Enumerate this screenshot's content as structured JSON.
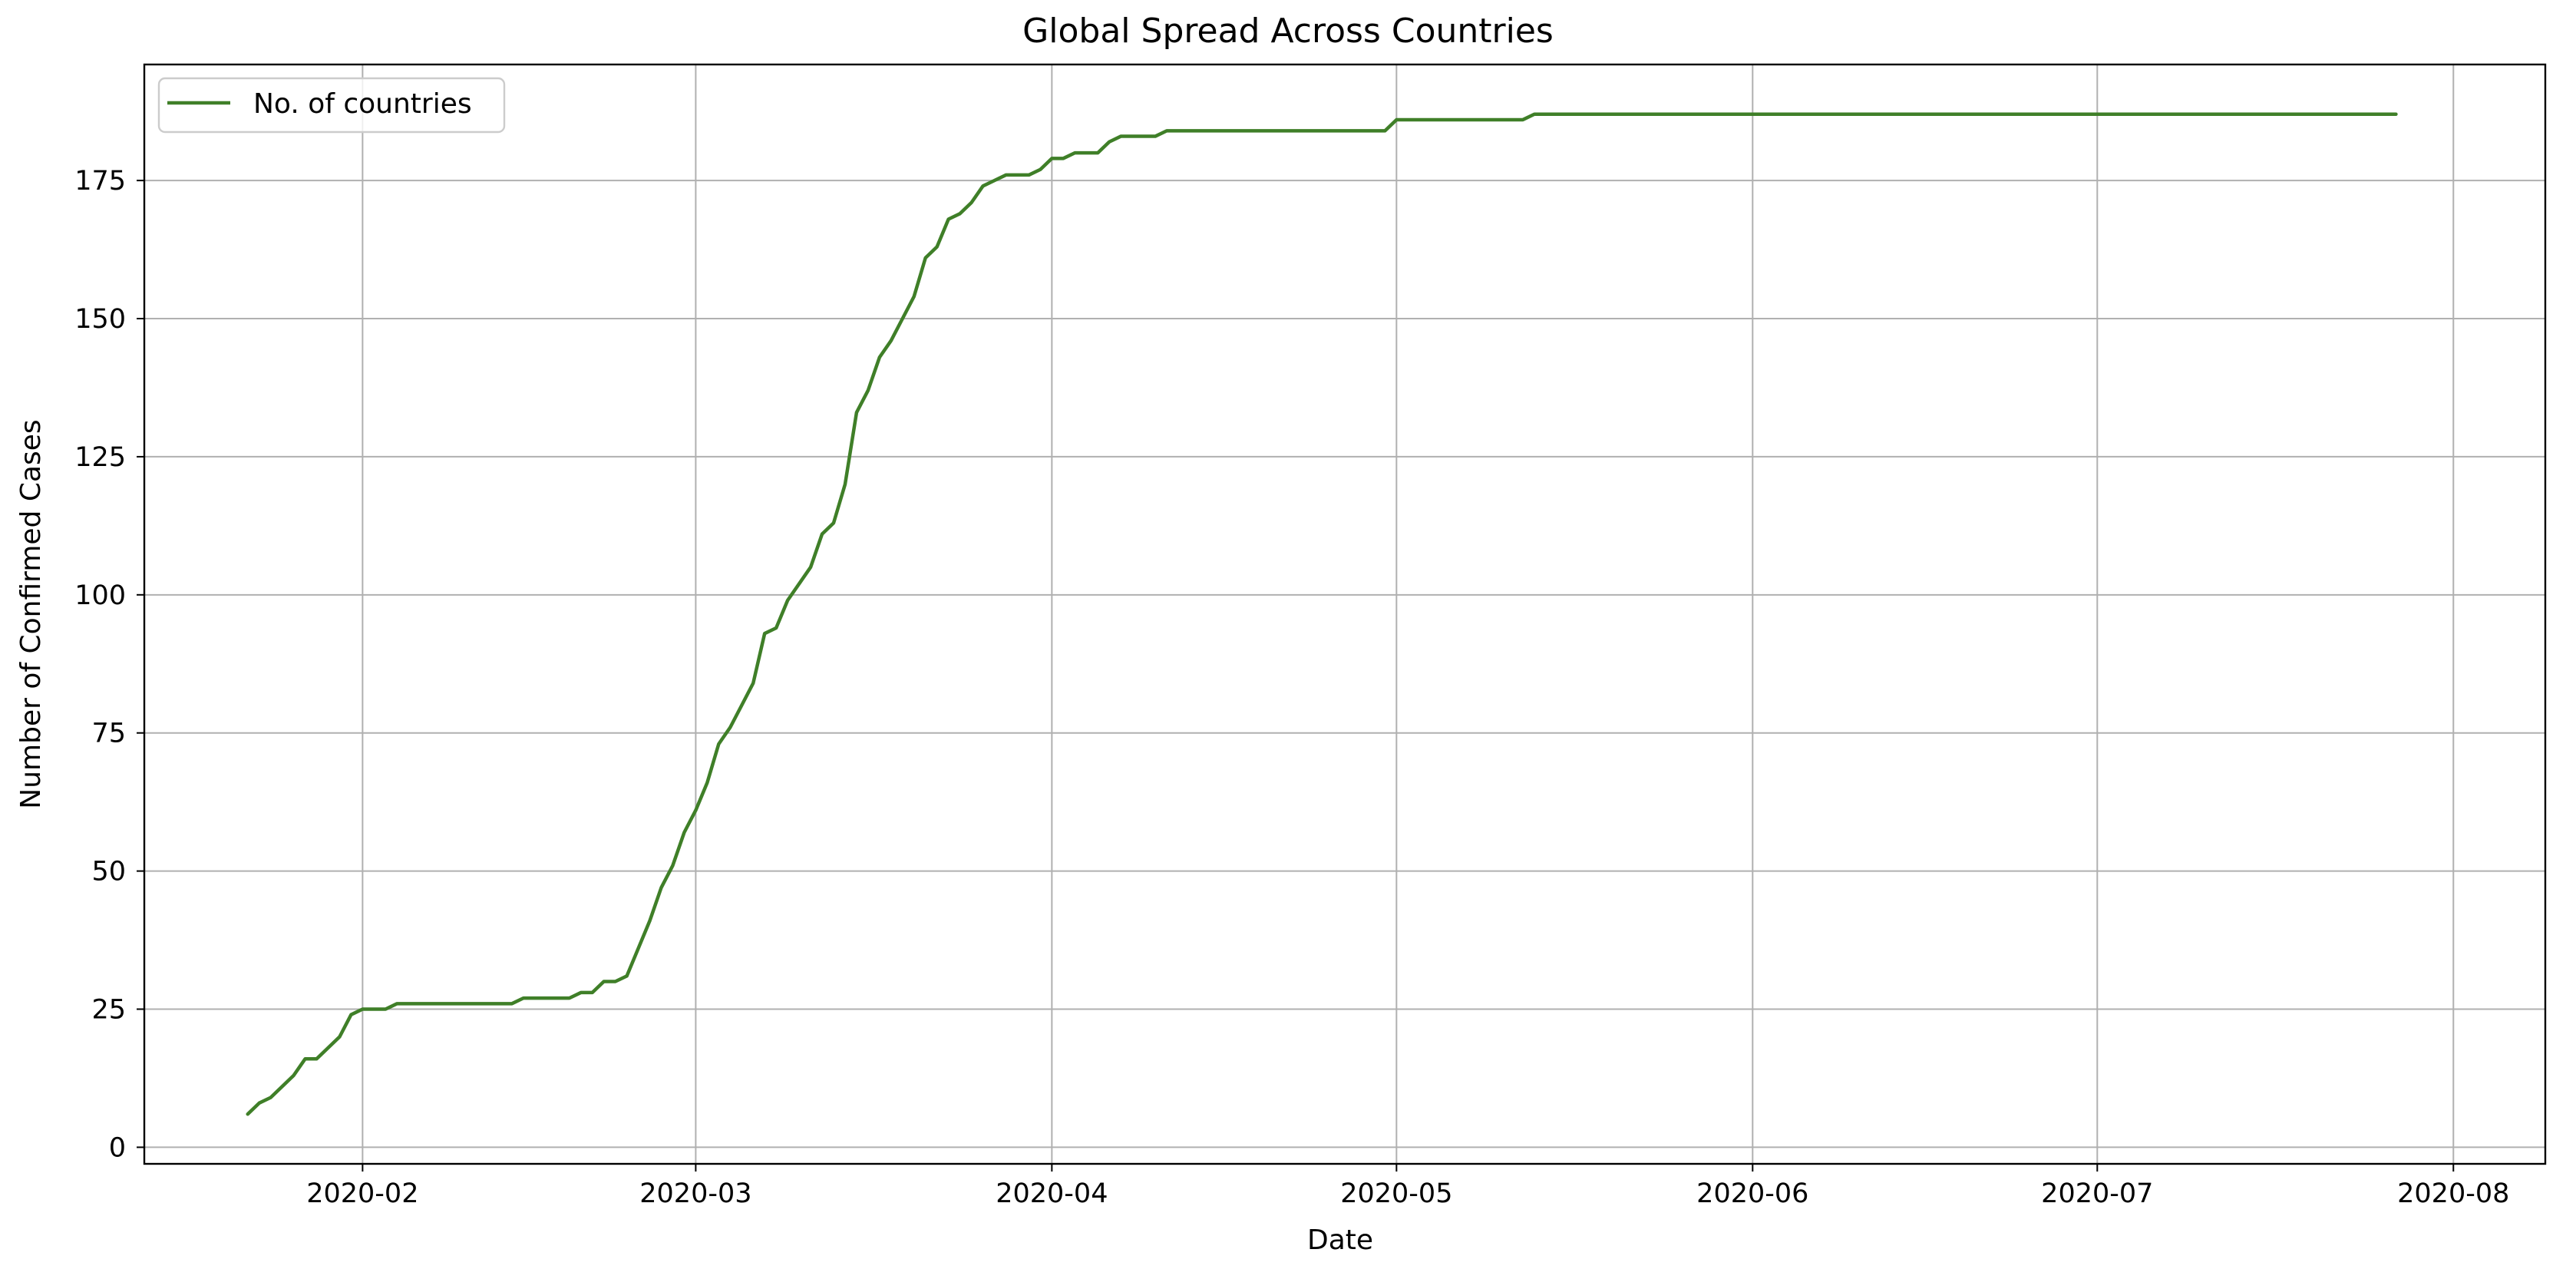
{
  "chart_data": {
    "type": "line",
    "title": "Global Spread Across Countries",
    "xlabel": "Date",
    "ylabel": "Number of Confirmed Cases",
    "x_axis": "date",
    "xlim": [
      "2020-01-13",
      "2020-08-09"
    ],
    "ylim": [
      -3,
      196
    ],
    "xticks": [
      "2020-02-01",
      "2020-03-01",
      "2020-04-01",
      "2020-05-01",
      "2020-06-01",
      "2020-07-01",
      "2020-08-01"
    ],
    "xtick_labels": [
      "2020-02",
      "2020-03",
      "2020-04",
      "2020-05",
      "2020-06",
      "2020-07",
      "2020-08"
    ],
    "yticks": [
      0,
      25,
      50,
      75,
      100,
      125,
      150,
      175
    ],
    "grid": true,
    "legend": {
      "position": "top-left",
      "entries": [
        "No. of countries"
      ]
    },
    "series": [
      {
        "name": "No. of countries",
        "color": "#3f7f28",
        "points": [
          [
            "2020-01-22",
            6
          ],
          [
            "2020-01-23",
            8
          ],
          [
            "2020-01-24",
            9
          ],
          [
            "2020-01-25",
            11
          ],
          [
            "2020-01-26",
            13
          ],
          [
            "2020-01-27",
            16
          ],
          [
            "2020-01-28",
            16
          ],
          [
            "2020-01-29",
            18
          ],
          [
            "2020-01-30",
            20
          ],
          [
            "2020-01-31",
            24
          ],
          [
            "2020-02-01",
            25
          ],
          [
            "2020-02-02",
            25
          ],
          [
            "2020-02-03",
            25
          ],
          [
            "2020-02-04",
            26
          ],
          [
            "2020-02-14",
            26
          ],
          [
            "2020-02-15",
            27
          ],
          [
            "2020-02-19",
            27
          ],
          [
            "2020-02-20",
            28
          ],
          [
            "2020-02-21",
            28
          ],
          [
            "2020-02-22",
            30
          ],
          [
            "2020-02-23",
            30
          ],
          [
            "2020-02-24",
            31
          ],
          [
            "2020-02-25",
            36
          ],
          [
            "2020-02-26",
            41
          ],
          [
            "2020-02-27",
            47
          ],
          [
            "2020-02-28",
            51
          ],
          [
            "2020-02-29",
            57
          ],
          [
            "2020-03-01",
            61
          ],
          [
            "2020-03-02",
            66
          ],
          [
            "2020-03-03",
            73
          ],
          [
            "2020-03-04",
            76
          ],
          [
            "2020-03-05",
            80
          ],
          [
            "2020-03-06",
            84
          ],
          [
            "2020-03-07",
            93
          ],
          [
            "2020-03-08",
            94
          ],
          [
            "2020-03-09",
            99
          ],
          [
            "2020-03-10",
            102
          ],
          [
            "2020-03-11",
            105
          ],
          [
            "2020-03-12",
            111
          ],
          [
            "2020-03-13",
            113
          ],
          [
            "2020-03-14",
            120
          ],
          [
            "2020-03-15",
            133
          ],
          [
            "2020-03-16",
            137
          ],
          [
            "2020-03-17",
            143
          ],
          [
            "2020-03-18",
            146
          ],
          [
            "2020-03-19",
            150
          ],
          [
            "2020-03-20",
            154
          ],
          [
            "2020-03-21",
            161
          ],
          [
            "2020-03-22",
            163
          ],
          [
            "2020-03-23",
            168
          ],
          [
            "2020-03-24",
            169
          ],
          [
            "2020-03-25",
            171
          ],
          [
            "2020-03-26",
            174
          ],
          [
            "2020-03-27",
            175
          ],
          [
            "2020-03-28",
            176
          ],
          [
            "2020-03-30",
            176
          ],
          [
            "2020-03-31",
            177
          ],
          [
            "2020-04-01",
            179
          ],
          [
            "2020-04-02",
            179
          ],
          [
            "2020-04-03",
            180
          ],
          [
            "2020-04-05",
            180
          ],
          [
            "2020-04-06",
            182
          ],
          [
            "2020-04-07",
            183
          ],
          [
            "2020-04-10",
            183
          ],
          [
            "2020-04-11",
            184
          ],
          [
            "2020-04-30",
            184
          ],
          [
            "2020-05-01",
            186
          ],
          [
            "2020-05-12",
            186
          ],
          [
            "2020-05-13",
            187
          ],
          [
            "2020-07-27",
            187
          ]
        ]
      }
    ]
  }
}
